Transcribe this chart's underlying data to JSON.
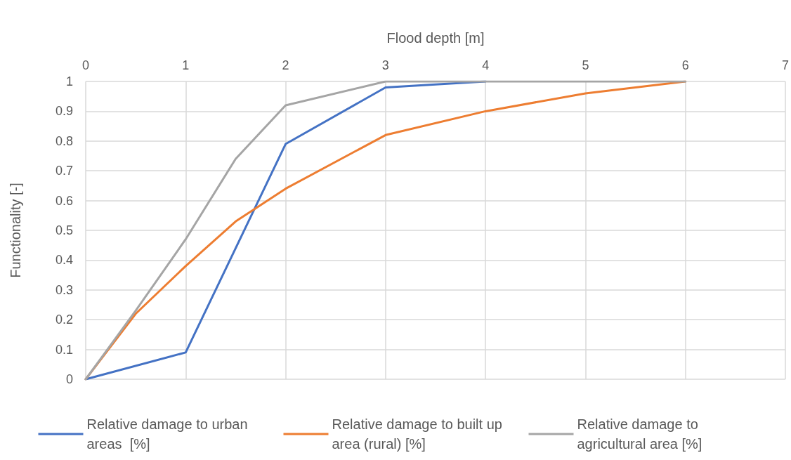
{
  "chart_data": {
    "type": "line",
    "xlabel": "Flood depth [m]",
    "ylabel": "Functionality [-]",
    "xlim": [
      0,
      7
    ],
    "xticks": [
      0,
      1,
      2,
      3,
      4,
      5,
      6,
      7
    ],
    "ylim": [
      0,
      1
    ],
    "yticks": [
      0,
      0.1,
      0.2,
      0.3,
      0.4,
      0.5,
      0.6,
      0.7,
      0.8,
      0.9,
      1
    ],
    "grid": true,
    "legend": "bottom",
    "marker": "none",
    "line_style": "solid",
    "series": [
      {
        "name": "Relative damage to urban areas  [%]",
        "color": "#4472c4",
        "x": [
          0,
          1,
          2,
          3,
          4
        ],
        "values": [
          0,
          0.09,
          0.79,
          0.98,
          1
        ]
      },
      {
        "name": "Relative damage to built up area (rural) [%]",
        "color": "#ed7d31",
        "x": [
          0,
          0.5,
          1,
          1.5,
          2,
          3,
          4,
          5,
          6
        ],
        "values": [
          0,
          0.22,
          0.38,
          0.53,
          0.64,
          0.82,
          0.9,
          0.96,
          1
        ]
      },
      {
        "name": "Relative damage to agricultural area [%]",
        "color": "#a5a5a5",
        "x": [
          0,
          0.5,
          1,
          1.5,
          2,
          3,
          4,
          5,
          6
        ],
        "values": [
          0,
          0.23,
          0.47,
          0.74,
          0.92,
          1,
          1,
          1,
          1
        ]
      }
    ]
  }
}
